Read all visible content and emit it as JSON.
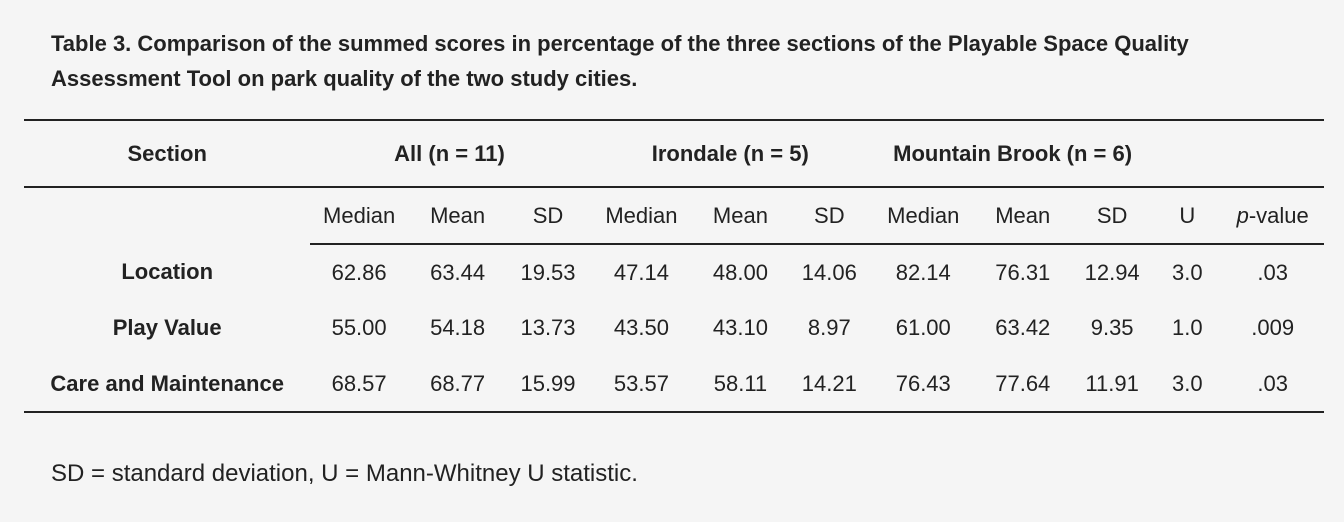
{
  "caption": "Table 3. Comparison of the summed scores in percentage of the three sections of the Playable Space Quality Assessment Tool on park quality of the two study cities.",
  "table": {
    "group_headers": {
      "section": "Section",
      "all": "All (n = 11)",
      "irondale": "Irondale (n = 5)",
      "mountain_brook": "Mountain Brook (n = 6)"
    },
    "sub_headers": {
      "median": "Median",
      "mean": "Mean",
      "sd": "SD",
      "u": "U",
      "p_italic": "p",
      "p_suffix": "-value"
    },
    "rows": [
      {
        "section": "Location",
        "all": {
          "median": "62.86",
          "mean": "63.44",
          "sd": "19.53"
        },
        "irondale": {
          "median": "47.14",
          "mean": "48.00",
          "sd": "14.06"
        },
        "mountain_brook": {
          "median": "82.14",
          "mean": "76.31",
          "sd": "12.94"
        },
        "u": "3.0",
        "p": ".03"
      },
      {
        "section": "Play Value",
        "all": {
          "median": "55.00",
          "mean": "54.18",
          "sd": "13.73"
        },
        "irondale": {
          "median": "43.50",
          "mean": "43.10",
          "sd": "8.97"
        },
        "mountain_brook": {
          "median": "61.00",
          "mean": "63.42",
          "sd": "9.35"
        },
        "u": "1.0",
        "p": ".009"
      },
      {
        "section": "Care and Maintenance",
        "all": {
          "median": "68.57",
          "mean": "68.77",
          "sd": "15.99"
        },
        "irondale": {
          "median": "53.57",
          "mean": "58.11",
          "sd": "14.21"
        },
        "mountain_brook": {
          "median": "76.43",
          "mean": "77.64",
          "sd": "11.91"
        },
        "u": "3.0",
        "p": ".03"
      }
    ]
  },
  "footnote": "SD = standard deviation, U = Mann-Whitney U statistic."
}
